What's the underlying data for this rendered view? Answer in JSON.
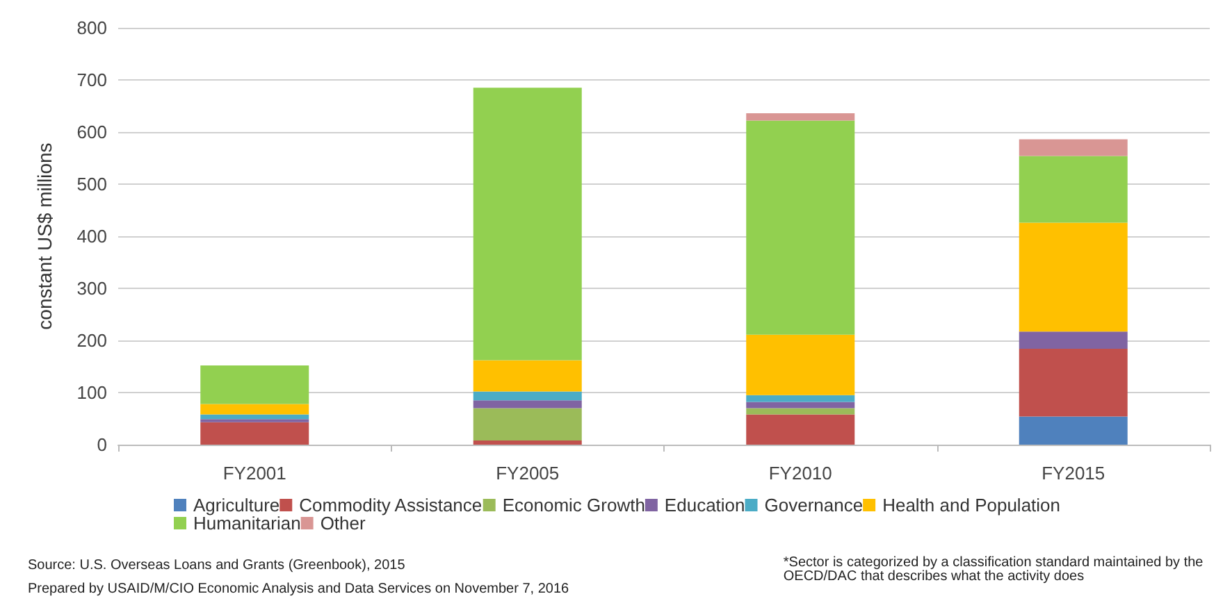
{
  "chart_data": {
    "type": "bar",
    "stacked": true,
    "ylabel": "constant US$ millions",
    "categories": [
      "FY2001",
      "FY2005",
      "FY2010",
      "FY2015"
    ],
    "series": [
      {
        "name": "Agriculture",
        "color": "#4f81bd",
        "values": [
          0,
          0,
          0,
          54
        ]
      },
      {
        "name": "Commodity Assistance",
        "color": "#c0504d",
        "values": [
          43,
          8,
          58,
          130
        ]
      },
      {
        "name": "Economic Growth",
        "color": "#9bbb59",
        "values": [
          0,
          62,
          12,
          0
        ]
      },
      {
        "name": "Education",
        "color": "#8064a2",
        "values": [
          6,
          15,
          12,
          33
        ]
      },
      {
        "name": "Governance",
        "color": "#4bacc6",
        "values": [
          9,
          17,
          13,
          0
        ]
      },
      {
        "name": "Health and Population",
        "color": "#ffc000",
        "values": [
          20,
          60,
          116,
          209
        ]
      },
      {
        "name": "Humanitarian",
        "color": "#92d050",
        "values": [
          74,
          523,
          411,
          128
        ]
      },
      {
        "name": "Other",
        "color": "#d99694",
        "values": [
          0,
          0,
          14,
          32
        ]
      }
    ],
    "ylim": [
      0,
      800
    ],
    "yticks": [
      0,
      100,
      200,
      300,
      400,
      500,
      600,
      700,
      800
    ],
    "grid": "y",
    "legend": "bottom",
    "annotations": [
      "Source: U.S. Overseas Loans and Grants (Greenbook), 2015",
      "Prepared by USAID/M/CIO Economic Analysis and Data Services on November 7, 2016",
      "*Sector is categorized by a classification standard maintained by the OECD/DAC that describes what the activity does"
    ]
  }
}
